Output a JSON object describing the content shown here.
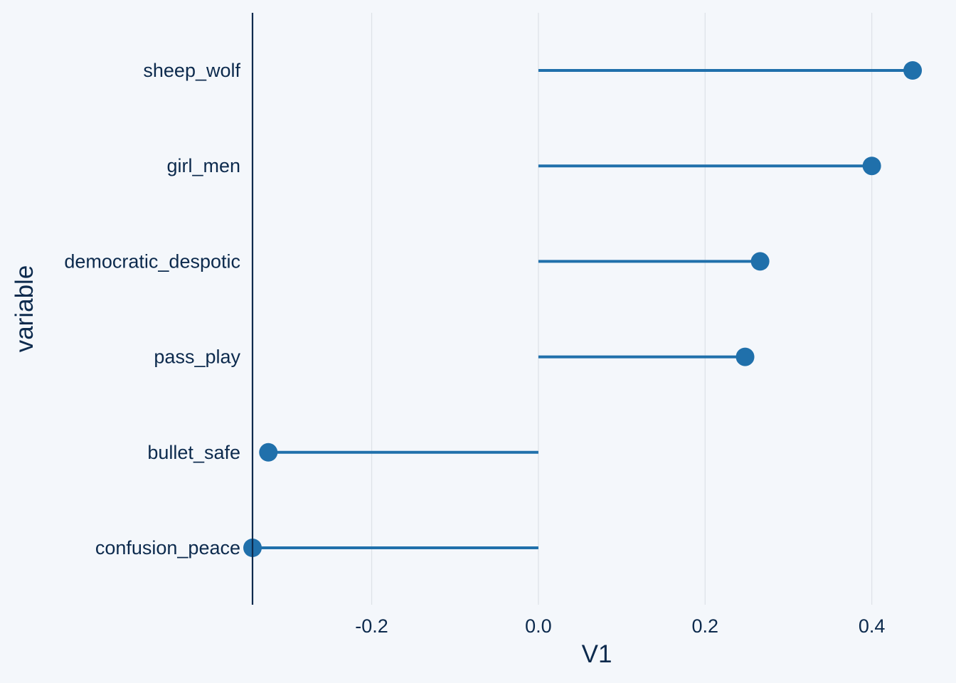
{
  "chart_data": {
    "type": "lollipop",
    "xlabel": "V1",
    "ylabel": "variable",
    "xlim": [
      -0.343,
      0.472
    ],
    "xticks": [
      -0.2,
      0.0,
      0.2,
      0.4
    ],
    "xtick_labels": [
      "-0.2",
      "0.0",
      "0.2",
      "0.4"
    ],
    "baseline": 0,
    "categories": [
      "sheep_wolf",
      "girl_men",
      "democratic_despotic",
      "pass_play",
      "bullet_safe",
      "confusion_peace"
    ],
    "values": [
      0.449,
      0.4,
      0.266,
      0.248,
      -0.324,
      -0.343
    ],
    "grid": "vertical-major",
    "legend": "none",
    "colors": {
      "background": "#f4f7fb",
      "series": "#2070ab",
      "grid": "#dde2e7",
      "axis_line": "#0c2a4d",
      "text": "#0c2a4d"
    }
  }
}
